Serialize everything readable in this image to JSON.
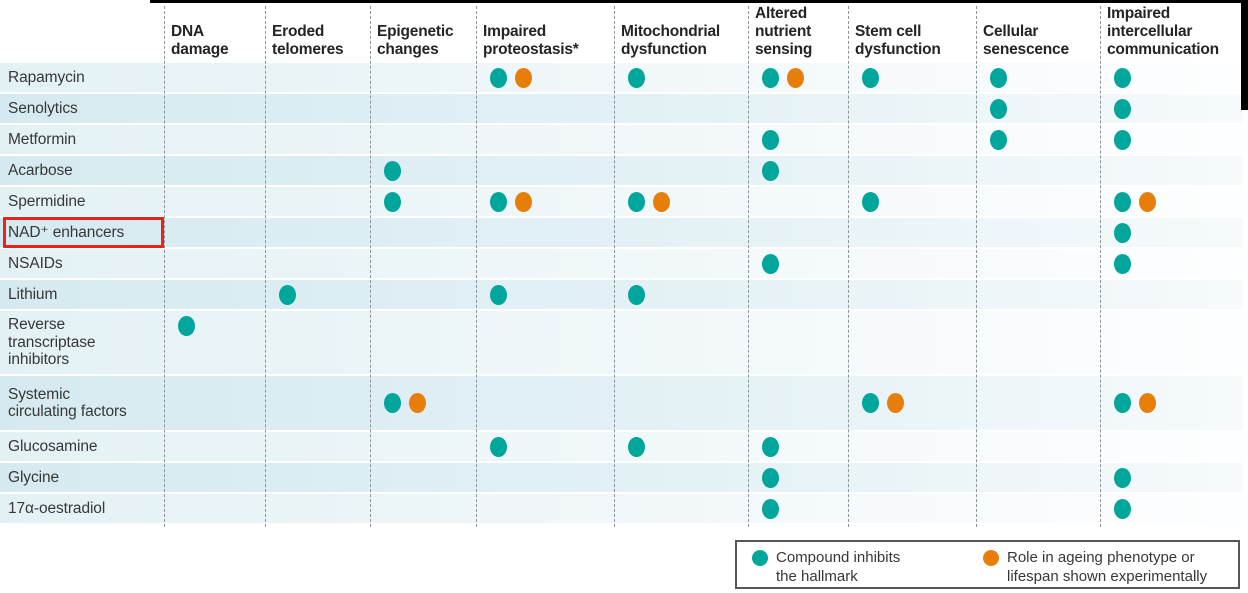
{
  "chart_data": {
    "type": "table",
    "title": "",
    "columns": [
      "DNA\ndamage",
      "Eroded\ntelomeres",
      "Epigenetic\nchanges",
      "Impaired\nproteostasis*",
      "Mitochondrial\ndysfunction",
      "Altered\nnutrient\nsensing",
      "Stem cell\ndysfunction",
      "Cellular\nsenescence",
      "Impaired\nintercellular\ncommunication"
    ],
    "rows": [
      {
        "label": "Rapamycin",
        "highlighted": false,
        "cells": [
          "",
          "",
          "",
          "to",
          "t",
          "to",
          "t",
          "t",
          "t"
        ]
      },
      {
        "label": "Senolytics",
        "highlighted": false,
        "cells": [
          "",
          "",
          "",
          "",
          "",
          "",
          "",
          "t",
          "t"
        ]
      },
      {
        "label": "Metformin",
        "highlighted": false,
        "cells": [
          "",
          "",
          "",
          "",
          "",
          "t",
          "",
          "t",
          "t"
        ]
      },
      {
        "label": "Acarbose",
        "highlighted": false,
        "cells": [
          "",
          "",
          "t",
          "",
          "",
          "t",
          "",
          "",
          ""
        ]
      },
      {
        "label": "Spermidine",
        "highlighted": false,
        "cells": [
          "",
          "",
          "t",
          "to",
          "to",
          "",
          "t",
          "",
          "to"
        ]
      },
      {
        "label": "NAD⁺ enhancers",
        "highlighted": true,
        "cells": [
          "",
          "",
          "",
          "",
          "",
          "",
          "",
          "",
          "t"
        ]
      },
      {
        "label": "NSAIDs",
        "highlighted": false,
        "cells": [
          "",
          "",
          "",
          "",
          "",
          "t",
          "",
          "",
          "t"
        ]
      },
      {
        "label": "Lithium",
        "highlighted": false,
        "cells": [
          "",
          "t",
          "",
          "t",
          "t",
          "",
          "",
          "",
          ""
        ]
      },
      {
        "label": "Reverse\ntranscriptase\ninhibitors",
        "highlighted": false,
        "cells": [
          "t",
          "",
          "",
          "",
          "",
          "",
          "",
          "",
          ""
        ]
      },
      {
        "label": "Systemic\ncirculating factors",
        "highlighted": false,
        "cells": [
          "",
          "",
          "to",
          "",
          "",
          "",
          "to",
          "",
          "to"
        ]
      },
      {
        "label": "Glucosamine",
        "highlighted": false,
        "cells": [
          "",
          "",
          "",
          "t",
          "t",
          "t",
          "",
          "",
          ""
        ]
      },
      {
        "label": "Glycine",
        "highlighted": false,
        "cells": [
          "",
          "",
          "",
          "",
          "",
          "t",
          "",
          "",
          "t"
        ]
      },
      {
        "label": "17α-oestradiol",
        "highlighted": false,
        "cells": [
          "",
          "",
          "",
          "",
          "",
          "t",
          "",
          "",
          "t"
        ]
      }
    ],
    "cell_encoding": {
      "t": "teal dot = compound inhibits the hallmark",
      "o": "orange dot = role in ageing phenotype or lifespan shown experimentally"
    },
    "colors": {
      "teal": "#00A69B",
      "orange": "#E87E0A",
      "highlight_red": "#E8231A"
    },
    "legend": [
      {
        "color": "teal",
        "hex": "#00A69B",
        "label": "Compound inhibits\nthe hallmark"
      },
      {
        "color": "orange",
        "hex": "#E87E0A",
        "label": "Role in ageing phenotype or\nlifespan shown experimentally"
      }
    ],
    "legend_position": "bottom-right",
    "grid": "dashed-column-separators",
    "highlighted_row": "NAD⁺ enhancers"
  }
}
